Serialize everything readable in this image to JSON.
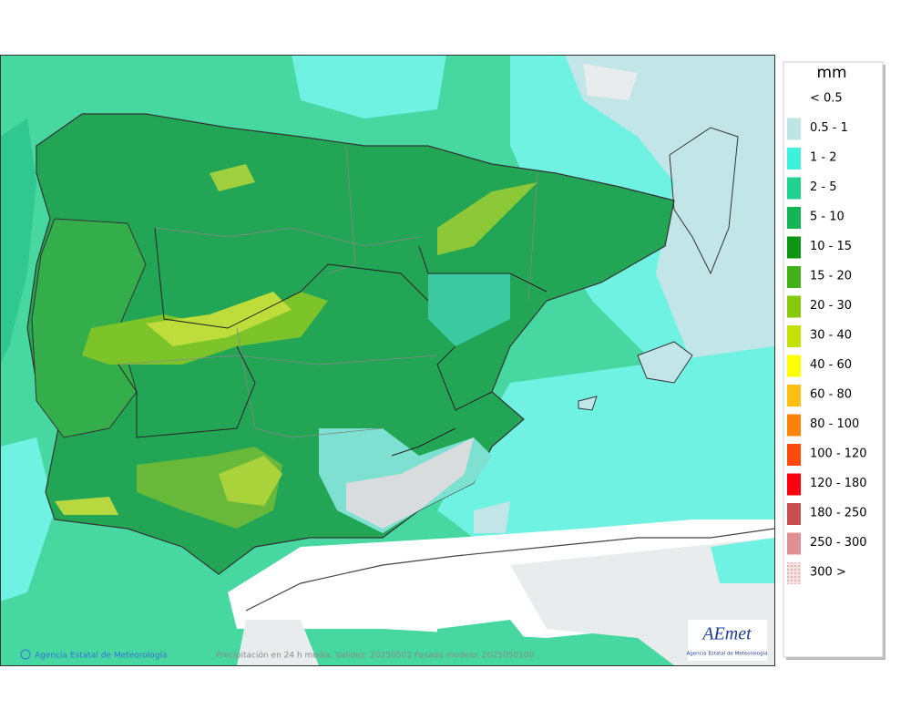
{
  "map": {
    "footer": {
      "credit": "Agencia Estatal de Meteorología",
      "caption": "Precipitación en 24 h media. Validez: 20250502 Pasada modelo: 2025050100"
    },
    "logo": {
      "name": "AEmet",
      "subtitle": "Agencia Estatal de Meteorología"
    },
    "legend": {
      "title": "mm",
      "items": [
        {
          "label": "< 0.5",
          "color": null
        },
        {
          "label": "0.5 - 1",
          "color": "#bfe4e6"
        },
        {
          "label": "1 - 2",
          "color": "#3ff0dc"
        },
        {
          "label": "2 - 5",
          "color": "#1ed38f"
        },
        {
          "label": "5 - 10",
          "color": "#12b454"
        },
        {
          "label": "10 - 15",
          "color": "#0c9612"
        },
        {
          "label": "15 - 20",
          "color": "#44b01a"
        },
        {
          "label": "20 - 30",
          "color": "#86c80a"
        },
        {
          "label": "30 - 40",
          "color": "#c4e202"
        },
        {
          "label": "40 - 60",
          "color": "#ffff00"
        },
        {
          "label": "60 - 80",
          "color": "#ffbe12"
        },
        {
          "label": "80 - 100",
          "color": "#ff820a"
        },
        {
          "label": "100 - 120",
          "color": "#ff4a0a"
        },
        {
          "label": "120 - 180",
          "color": "#ff0010"
        },
        {
          "label": "180 - 250",
          "color": "#c84e50"
        },
        {
          "label": "250 - 300",
          "color": "#e09092"
        },
        {
          "label": "300 >",
          "color": "#f2c8c8"
        }
      ]
    }
  }
}
